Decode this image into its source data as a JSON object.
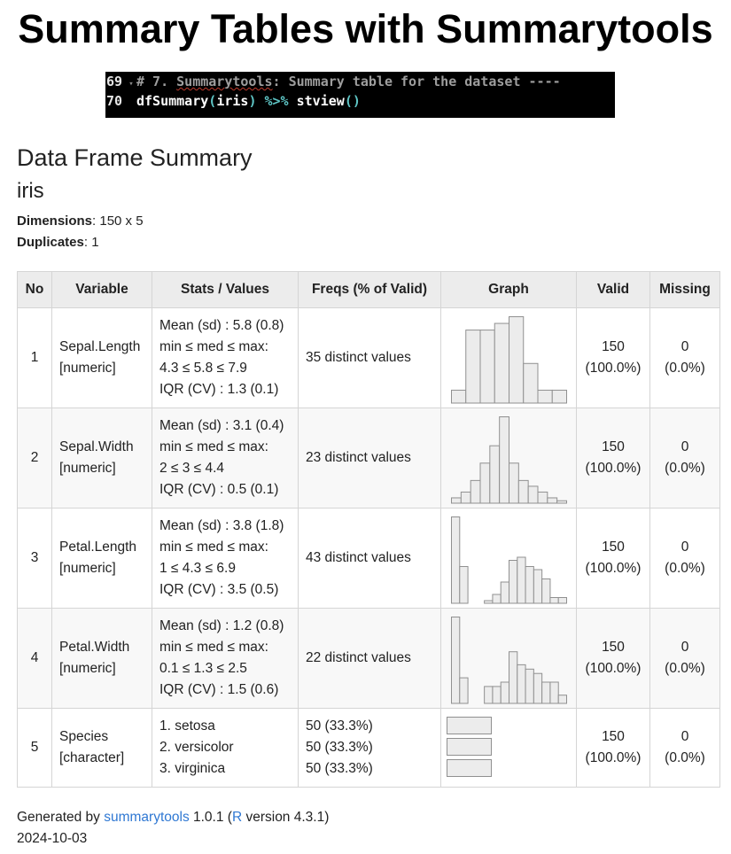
{
  "page": {
    "title": "Summary Tables with Summarytools",
    "heading": "Data Frame Summary",
    "dataset": "iris",
    "dimensions_label": "Dimensions",
    "dimensions_value": ": 150 x 5",
    "duplicates_label": "Duplicates",
    "duplicates_value": ": 1"
  },
  "code": {
    "line1_no": "69",
    "line1_comment_prefix": "# 7. ",
    "line1_comment_word": "Summarytools",
    "line1_comment_rest": ": Summary table for the dataset ----",
    "line2_no": "70",
    "line2_fn": "dfSummary",
    "line2_open": "(",
    "line2_arg": "iris",
    "line2_close": ")",
    "line2_op": "%>%",
    "line2_fn2": "stview",
    "line2_parens": "()"
  },
  "table": {
    "headers": {
      "no": "No",
      "variable": "Variable",
      "stats": "Stats / Values",
      "freqs": "Freqs (% of Valid)",
      "graph": "Graph",
      "valid": "Valid",
      "missing": "Missing"
    },
    "rows": [
      {
        "no": "1",
        "var_name": "Sepal.Length",
        "var_type": "[numeric]",
        "stats": [
          "Mean (sd) : 5.8 (0.8)",
          "min ≤ med ≤ max:",
          "4.3 ≤ 5.8 ≤ 7.9",
          "IQR (CV) : 1.3 (0.1)"
        ],
        "freqs": "35 distinct values",
        "valid_n": "150",
        "valid_pct": "(100.0%)",
        "missing_n": "0",
        "missing_pct": "(0.0%)"
      },
      {
        "no": "2",
        "var_name": "Sepal.Width",
        "var_type": "[numeric]",
        "stats": [
          "Mean (sd) : 3.1 (0.4)",
          "min ≤ med ≤ max:",
          "2 ≤ 3 ≤ 4.4",
          "IQR (CV) : 0.5 (0.1)"
        ],
        "freqs": "23 distinct values",
        "valid_n": "150",
        "valid_pct": "(100.0%)",
        "missing_n": "0",
        "missing_pct": "(0.0%)"
      },
      {
        "no": "3",
        "var_name": "Petal.Length",
        "var_type": "[numeric]",
        "stats": [
          "Mean (sd) : 3.8 (1.8)",
          "min ≤ med ≤ max:",
          "1 ≤ 4.3 ≤ 6.9",
          "IQR (CV) : 3.5 (0.5)"
        ],
        "freqs": "43 distinct values",
        "valid_n": "150",
        "valid_pct": "(100.0%)",
        "missing_n": "0",
        "missing_pct": "(0.0%)"
      },
      {
        "no": "4",
        "var_name": "Petal.Width",
        "var_type": "[numeric]",
        "stats": [
          "Mean (sd) : 1.2 (0.8)",
          "min ≤ med ≤ max:",
          "0.1 ≤ 1.3 ≤ 2.5",
          "IQR (CV) : 1.5 (0.6)"
        ],
        "freqs": "22 distinct values",
        "valid_n": "150",
        "valid_pct": "(100.0%)",
        "missing_n": "0",
        "missing_pct": "(0.0%)"
      },
      {
        "no": "5",
        "var_name": "Species",
        "var_type": "[character]",
        "stats": [
          "1. setosa",
          "2. versicolor",
          "3. virginica"
        ],
        "freqs": [
          "50 (33.3%)",
          "50 (33.3%)",
          "50 (33.3%)"
        ],
        "valid_n": "150",
        "valid_pct": "(100.0%)",
        "missing_n": "0",
        "missing_pct": "(0.0%)"
      }
    ]
  },
  "chart_data": [
    {
      "type": "bar",
      "variable": "Sepal.Length",
      "values": [
        2,
        11,
        11,
        12,
        13,
        6,
        2,
        2
      ]
    },
    {
      "type": "bar",
      "variable": "Sepal.Width",
      "values": [
        1,
        2,
        4,
        7,
        10,
        15,
        7,
        4,
        3,
        2,
        1,
        0.5
      ]
    },
    {
      "type": "bar",
      "variable": "Petal.Length",
      "values": [
        14,
        6,
        0,
        0,
        0.5,
        1.5,
        3.5,
        7,
        7.5,
        6,
        5.5,
        4,
        1,
        1
      ]
    },
    {
      "type": "bar",
      "variable": "Petal.Width",
      "values": [
        10,
        3,
        0,
        0,
        2,
        2,
        2.5,
        6,
        4.5,
        4,
        3.5,
        2.5,
        2.5,
        1
      ]
    },
    {
      "type": "bar",
      "variable": "Species",
      "categories": [
        "setosa",
        "versicolor",
        "virginica"
      ],
      "values": [
        33.3,
        33.3,
        33.3
      ]
    }
  ],
  "footer": {
    "generated_by": "Generated by ",
    "pkg_link": "summarytools",
    "version_open": " 1.0.1 (",
    "r_link": "R",
    "r_version": " version 4.3.1)",
    "date": "2024-10-03"
  }
}
